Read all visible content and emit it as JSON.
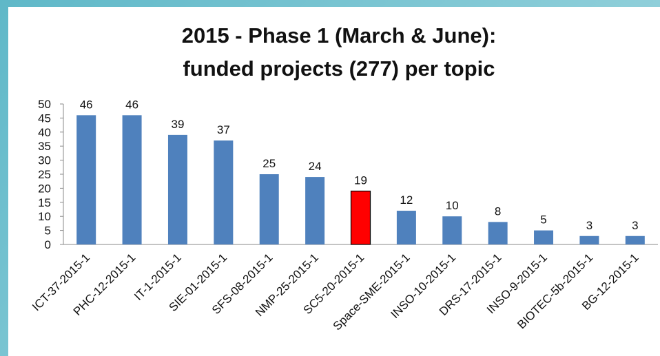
{
  "chart_data": {
    "type": "bar",
    "title": [
      "2015 - Phase 1 (March & June):",
      "funded projects (277) per topic"
    ],
    "categories": [
      "ICT-37-2015-1",
      "PHC-12-2015-1",
      "IT-1-2015-1",
      "SIE-01-2015-1",
      "SFS-08-2015-1",
      "NMP-25-2015-1",
      "SC5-20-2015-1",
      "Space-SME-2015-1",
      "INSO-10-2015-1",
      "DRS-17-2015-1",
      "INSO-9-2015-1",
      "BIOTEC-5b-2015-1",
      "BG-12-2015-1"
    ],
    "values": [
      46,
      46,
      39,
      37,
      25,
      24,
      19,
      12,
      10,
      8,
      5,
      3,
      3
    ],
    "colors": [
      "#4f81bd",
      "#4f81bd",
      "#4f81bd",
      "#4f81bd",
      "#4f81bd",
      "#4f81bd",
      "#ff0000",
      "#4f81bd",
      "#4f81bd",
      "#4f81bd",
      "#4f81bd",
      "#4f81bd",
      "#4f81bd"
    ],
    "ylim": [
      0,
      50
    ],
    "yticks": [
      0,
      5,
      10,
      15,
      20,
      25,
      30,
      35,
      40,
      45,
      50
    ],
    "grid": false
  }
}
